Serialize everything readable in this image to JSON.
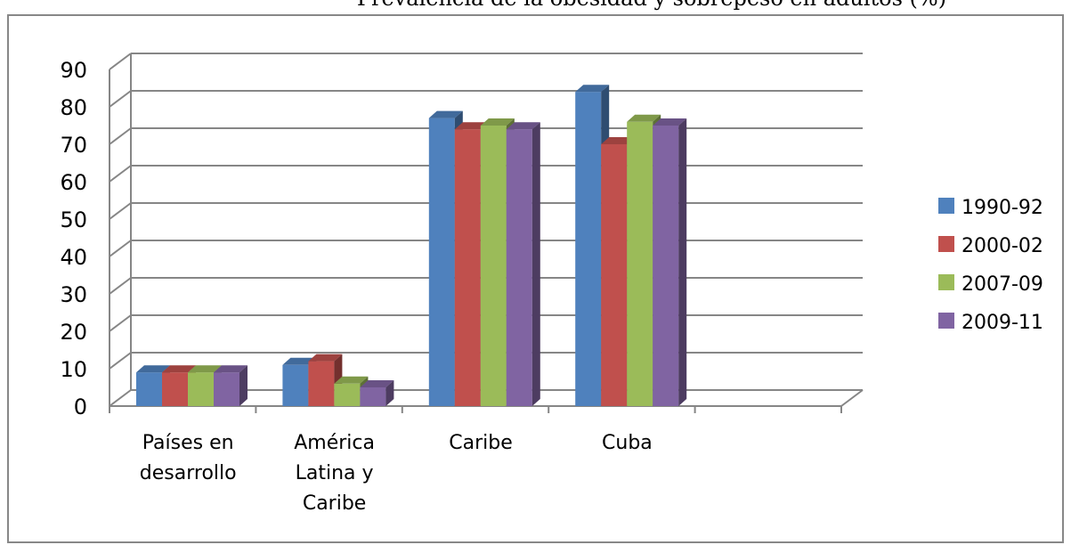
{
  "title_fragment": "Prevalencia de la obesidad y sobrepeso en adultos (%)",
  "chart_data": {
    "type": "bar",
    "style": "3d-clustered-column",
    "categories": [
      [
        "Países en",
        "desarrollo"
      ],
      [
        "América",
        "Latina y",
        "Caribe"
      ],
      [
        "Caribe"
      ],
      [
        "Cuba"
      ]
    ],
    "series": [
      {
        "name": "1990-92",
        "color": "#4f81bd",
        "values": [
          9,
          11,
          77,
          84
        ]
      },
      {
        "name": "2000-02",
        "color": "#c0504d",
        "values": [
          9,
          12,
          74,
          70
        ]
      },
      {
        "name": "2007-09",
        "color": "#9bbb59",
        "values": [
          9,
          6,
          75,
          76
        ]
      },
      {
        "name": "2009-11",
        "color": "#8064a2",
        "values": [
          9,
          5,
          74,
          75
        ]
      }
    ],
    "ylim": [
      0,
      90
    ],
    "yticks": [
      0,
      10,
      20,
      30,
      40,
      50,
      60,
      70,
      80,
      90
    ],
    "grid": true,
    "legend_position": "right"
  }
}
